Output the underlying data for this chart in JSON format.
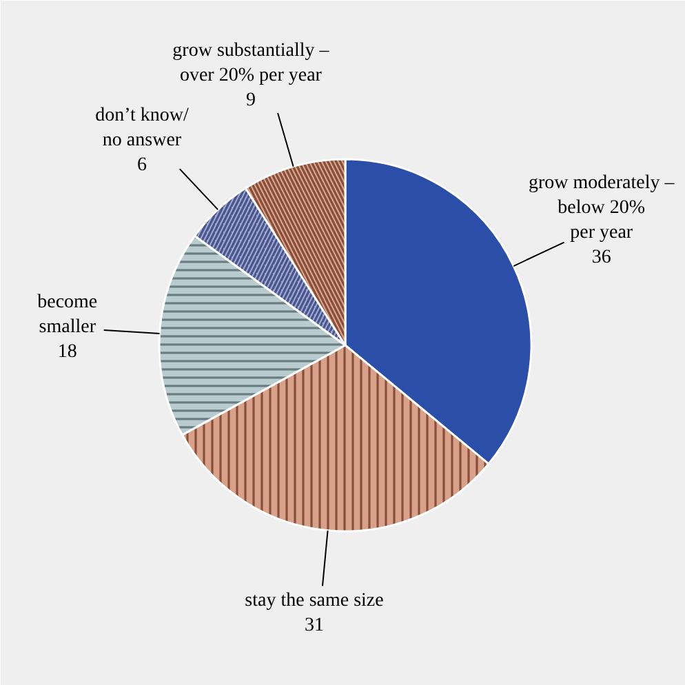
{
  "chart_data": {
    "type": "pie",
    "categories": [
      "grow moderately –\nbelow 20%\nper year",
      "stay the same size",
      "become\nsmaller",
      "don’t know/\nno answer",
      "grow substantially –\nover 20% per year"
    ],
    "values": [
      36,
      31,
      18,
      6,
      9
    ],
    "colors": [
      "#2b4fa8",
      "#d9a08a",
      "#b8ccd0",
      "#9ba6d8",
      "#d9a08a"
    ],
    "data_labels": true
  }
}
